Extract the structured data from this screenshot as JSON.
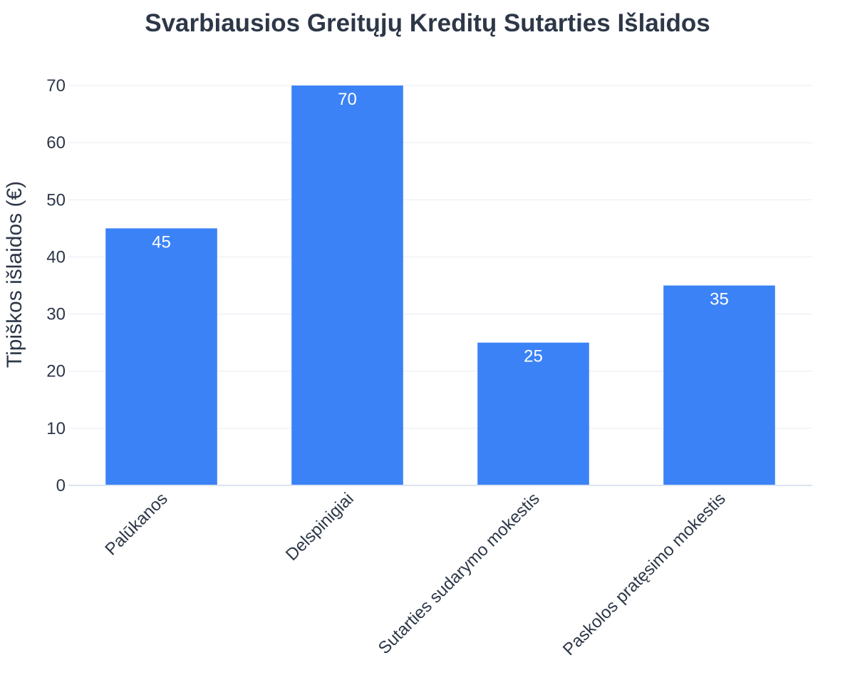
{
  "chart_data": {
    "type": "bar",
    "title": "Svarbiausios Greitųjų Kreditų Sutarties Išlaidos",
    "xlabel": "",
    "ylabel": "Tipiškos išlaidos (€)",
    "categories": [
      "Palūkanos",
      "Delspinigiai",
      "Sutarties sudarymo mokestis",
      "Paskolos pratęsimo mokestis"
    ],
    "values": [
      45,
      70,
      25,
      35
    ],
    "data_labels": [
      "45",
      "70",
      "25",
      "35"
    ],
    "ylim": [
      0,
      70
    ],
    "yticks": [
      0,
      10,
      20,
      30,
      40,
      50,
      60,
      70
    ],
    "grid": true,
    "legend": "none",
    "bar_color": "#3b82f6"
  }
}
